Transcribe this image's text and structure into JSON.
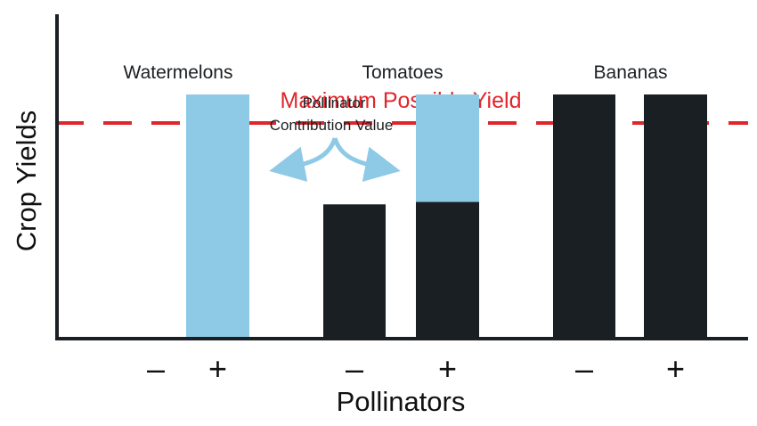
{
  "chart_data": {
    "type": "bar",
    "title": "",
    "xlabel": "Pollinators",
    "ylabel": "Crop Yields",
    "reference_line": {
      "label": "Maximum Possible Yield",
      "value": 100,
      "color": "#e0262b",
      "style": "dashed"
    },
    "groups": [
      "Watermelons",
      "Tomatoes",
      "Bananas"
    ],
    "conditions": [
      "–",
      "+"
    ],
    "series": [
      {
        "name": "",
        "color": "#1a1f24",
        "values": [
          [
            0,
            0
          ],
          [
            55,
            56
          ],
          [
            100,
            100
          ]
        ]
      },
      {
        "name": "Pollinator Contribution Value",
        "color": "#8ecae6",
        "values": [
          [
            0,
            100
          ],
          [
            0,
            44
          ],
          [
            0,
            0
          ]
        ]
      }
    ],
    "ylim": [
      0,
      115
    ],
    "annotations": [
      {
        "text": "Pollinator",
        "group": "Tomatoes"
      },
      {
        "text": "Contribution Value",
        "group": "Tomatoes"
      }
    ],
    "grid": false,
    "legend": "none"
  }
}
